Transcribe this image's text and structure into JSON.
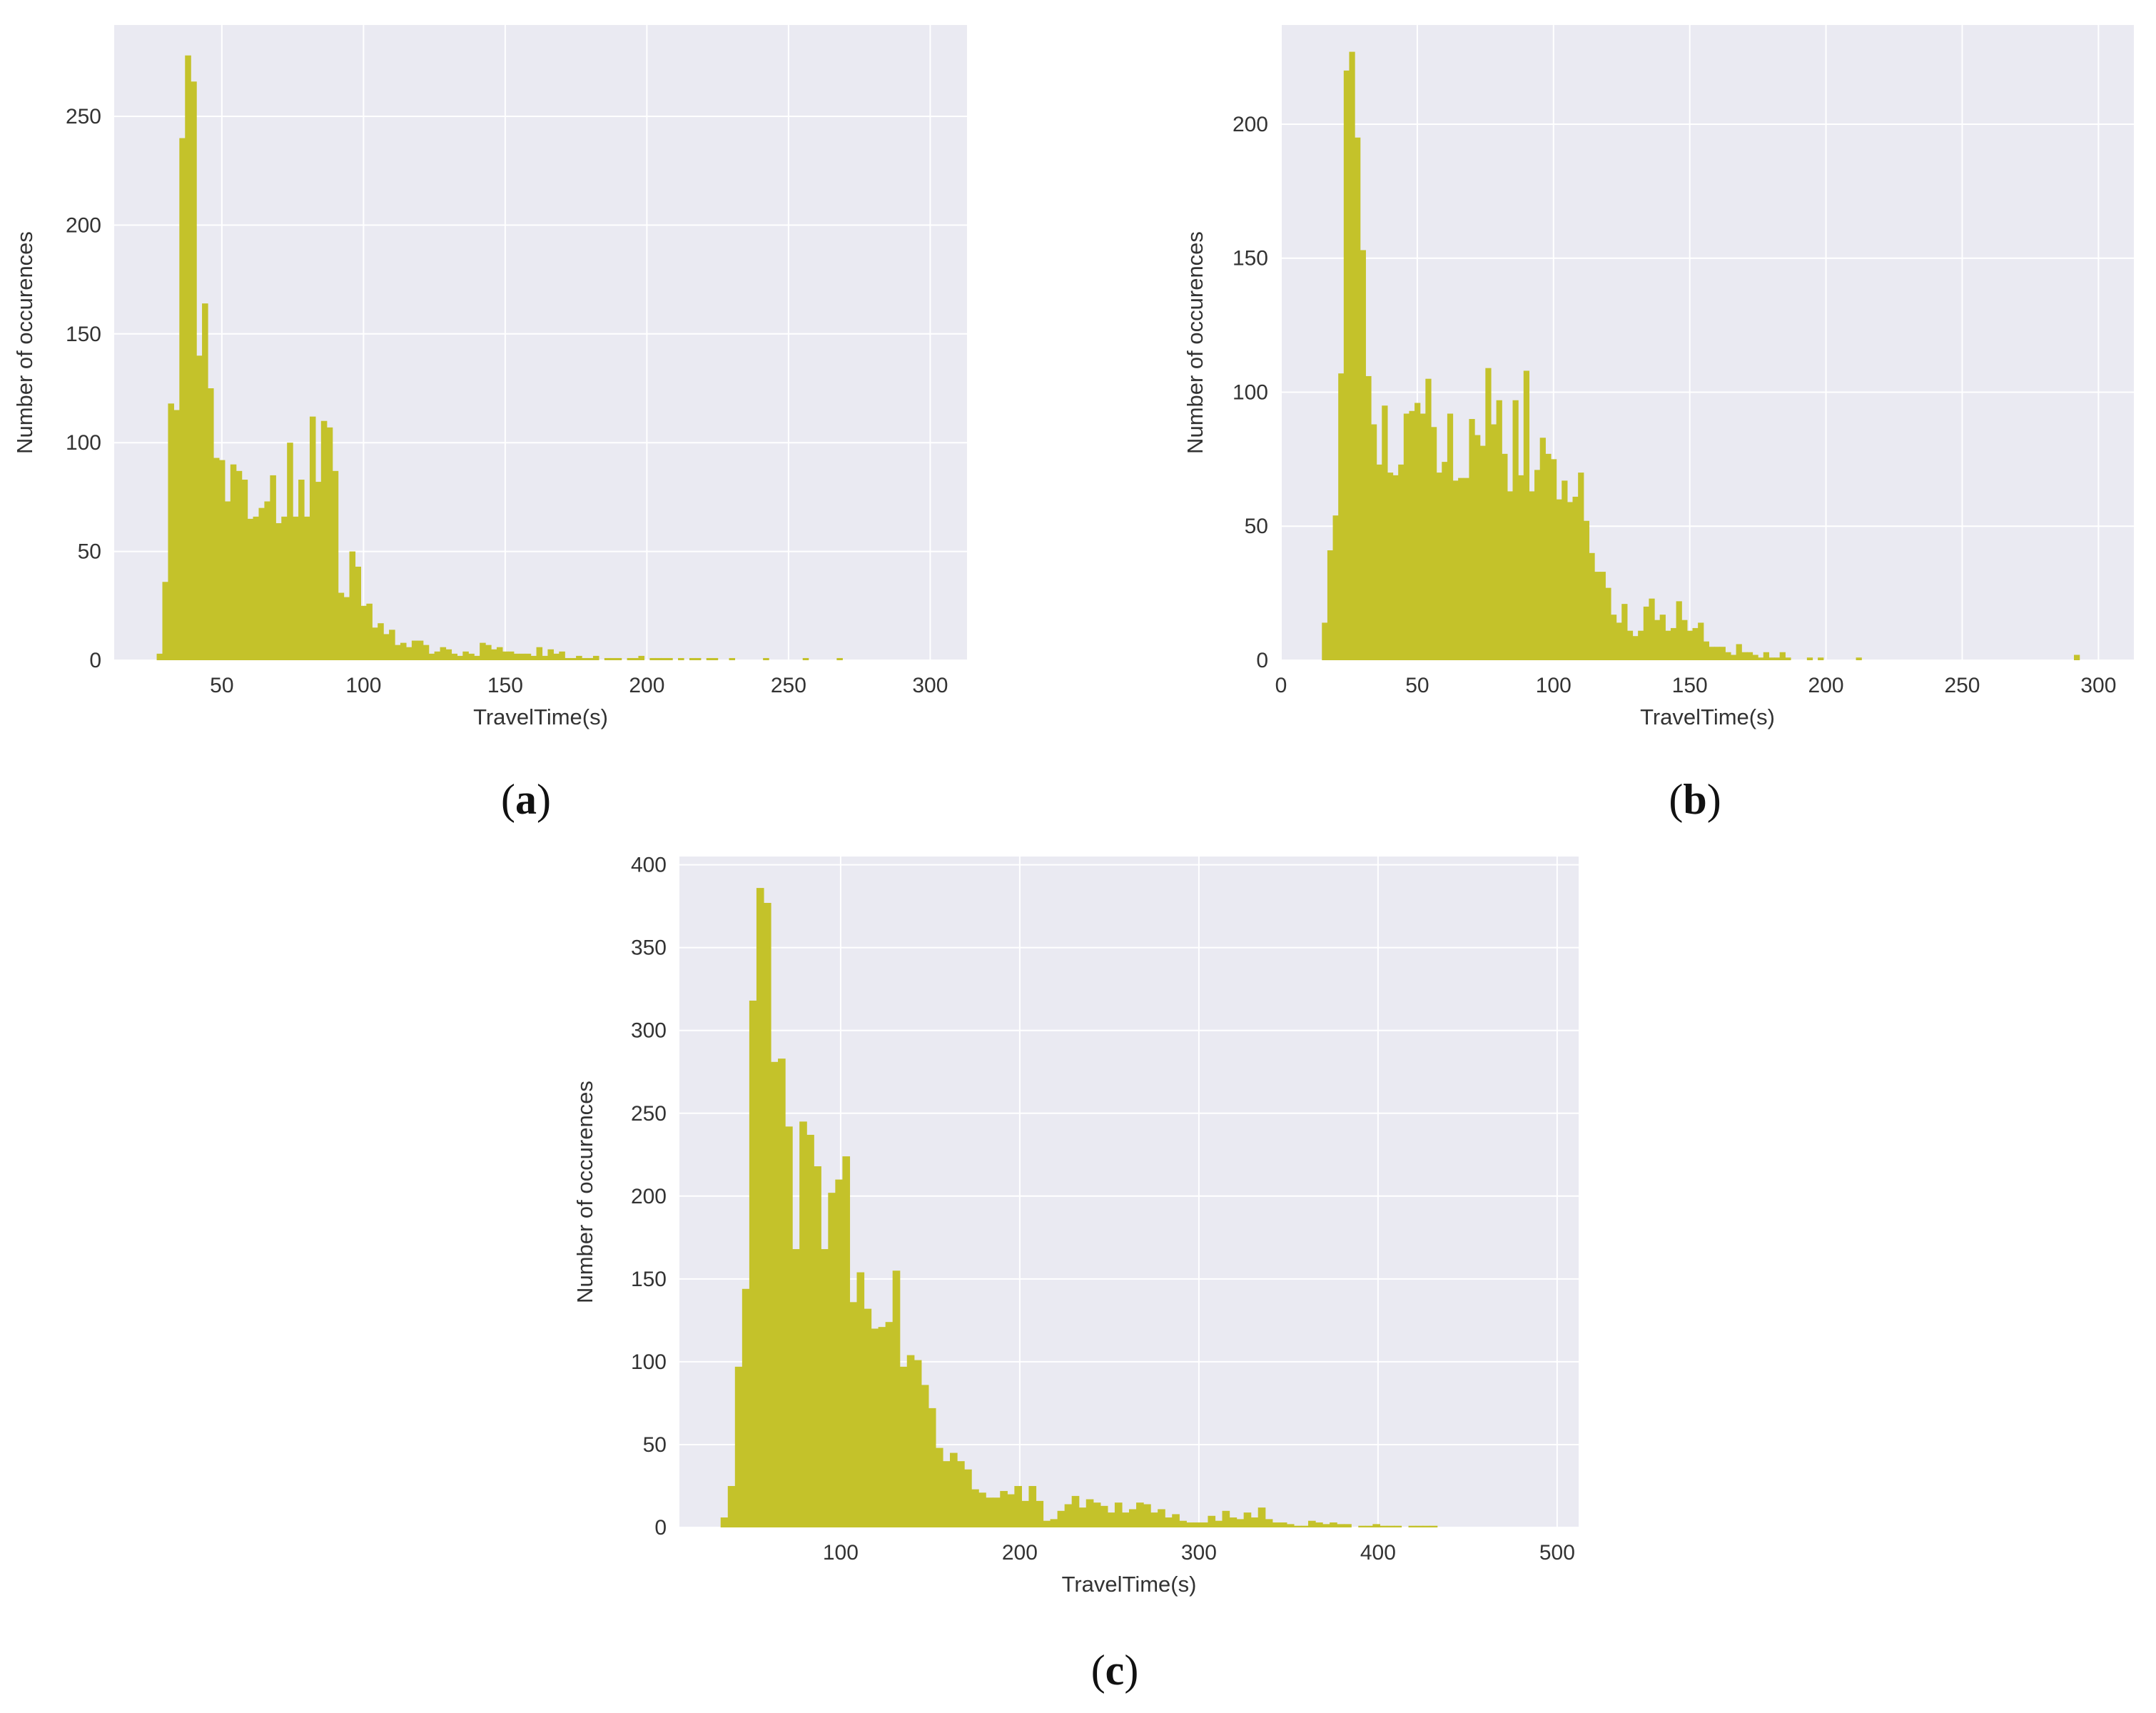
{
  "style": {
    "plot_background": "#EAEAF2",
    "grid_color": "#ffffff",
    "bar_color": "#C4C22A"
  },
  "chart_data": [
    {
      "type": "bar",
      "panel": "a",
      "panel_label": "a",
      "xlabel": "TravelTime(s)",
      "ylabel": "Number of occurences",
      "xlim": [
        12,
        313
      ],
      "ylim": [
        0,
        292
      ],
      "xticks": [
        50,
        100,
        150,
        200,
        250,
        300
      ],
      "yticks": [
        0,
        50,
        100,
        150,
        200,
        250
      ],
      "grid": true,
      "bin_start": 27,
      "bin_width": 2,
      "values": [
        3,
        36,
        118,
        115,
        240,
        278,
        266,
        140,
        164,
        125,
        93,
        92,
        73,
        90,
        87,
        83,
        65,
        66,
        70,
        73,
        85,
        63,
        66,
        100,
        66,
        83,
        66,
        112,
        82,
        110,
        107,
        87,
        31,
        29,
        50,
        43,
        25,
        26,
        15,
        17,
        12,
        14,
        7,
        8,
        6,
        9,
        9,
        7,
        3,
        4,
        6,
        5,
        3,
        2,
        4,
        3,
        2,
        8,
        7,
        5,
        6,
        4,
        4,
        3,
        3,
        3,
        2,
        6,
        2,
        5,
        3,
        4,
        1,
        1,
        2,
        1,
        1,
        2,
        0,
        1,
        1,
        1,
        0,
        1,
        1,
        2,
        0,
        1,
        1,
        1,
        1,
        0,
        1,
        0,
        1,
        1,
        0,
        1,
        1,
        0,
        0,
        1,
        0,
        0,
        0,
        0,
        0,
        1,
        0,
        0,
        0,
        0,
        0,
        0,
        1,
        0,
        0,
        0,
        0,
        0,
        1
      ]
    },
    {
      "type": "bar",
      "panel": "b",
      "panel_label": "b",
      "xlabel": "TravelTime(s)",
      "ylabel": "Number of occurences",
      "xlim": [
        0,
        313
      ],
      "ylim": [
        0,
        237
      ],
      "xticks": [
        0,
        50,
        100,
        150,
        200,
        250,
        300
      ],
      "yticks": [
        0,
        50,
        100,
        150,
        200
      ],
      "grid": true,
      "bin_start": 15,
      "bin_width": 2,
      "values": [
        14,
        41,
        54,
        107,
        220,
        227,
        195,
        153,
        106,
        88,
        73,
        95,
        70,
        69,
        73,
        92,
        93,
        96,
        92,
        105,
        87,
        70,
        74,
        92,
        67,
        68,
        68,
        90,
        84,
        80,
        109,
        88,
        97,
        77,
        63,
        97,
        69,
        108,
        63,
        71,
        83,
        77,
        75,
        60,
        67,
        59,
        61,
        70,
        52,
        40,
        33,
        33,
        27,
        17,
        14,
        21,
        11,
        9,
        11,
        20,
        23,
        15,
        17,
        11,
        12,
        22,
        15,
        11,
        12,
        14,
        7,
        5,
        5,
        5,
        3,
        2,
        6,
        3,
        3,
        2,
        1,
        3,
        1,
        1,
        3,
        1,
        0,
        0,
        0,
        1,
        0,
        1,
        0,
        0,
        0,
        0,
        0,
        0,
        1,
        0,
        0,
        0,
        0,
        0,
        0,
        0,
        0,
        0,
        0,
        0,
        0,
        0,
        0,
        0,
        0,
        0,
        0,
        0,
        0,
        0,
        0,
        0,
        0,
        0,
        0,
        0,
        0,
        0,
        0,
        0,
        0,
        0,
        0,
        0,
        0,
        0,
        0,
        0,
        2
      ]
    },
    {
      "type": "bar",
      "panel": "c",
      "panel_label": "c",
      "xlabel": "TravelTime(s)",
      "ylabel": "Number of occurences",
      "xlim": [
        10,
        512
      ],
      "ylim": [
        0,
        405
      ],
      "xticks": [
        100,
        200,
        300,
        400,
        500
      ],
      "yticks": [
        0,
        50,
        100,
        150,
        200,
        250,
        300,
        350,
        400
      ],
      "grid": true,
      "bin_start": 33,
      "bin_width": 4,
      "values": [
        6,
        25,
        97,
        144,
        318,
        386,
        377,
        281,
        283,
        242,
        168,
        245,
        237,
        218,
        168,
        202,
        210,
        224,
        136,
        154,
        132,
        120,
        121,
        124,
        155,
        97,
        104,
        101,
        86,
        72,
        48,
        40,
        45,
        40,
        35,
        23,
        21,
        18,
        18,
        22,
        20,
        25,
        16,
        25,
        16,
        4,
        5,
        10,
        14,
        19,
        12,
        17,
        15,
        13,
        9,
        15,
        9,
        11,
        15,
        14,
        9,
        11,
        6,
        8,
        4,
        3,
        3,
        3,
        7,
        4,
        10,
        6,
        5,
        9,
        6,
        12,
        5,
        3,
        3,
        2,
        1,
        1,
        4,
        3,
        2,
        3,
        2,
        2,
        0,
        1,
        1,
        2,
        1,
        1,
        1,
        0,
        1,
        1,
        1,
        1,
        0,
        0
      ]
    }
  ]
}
